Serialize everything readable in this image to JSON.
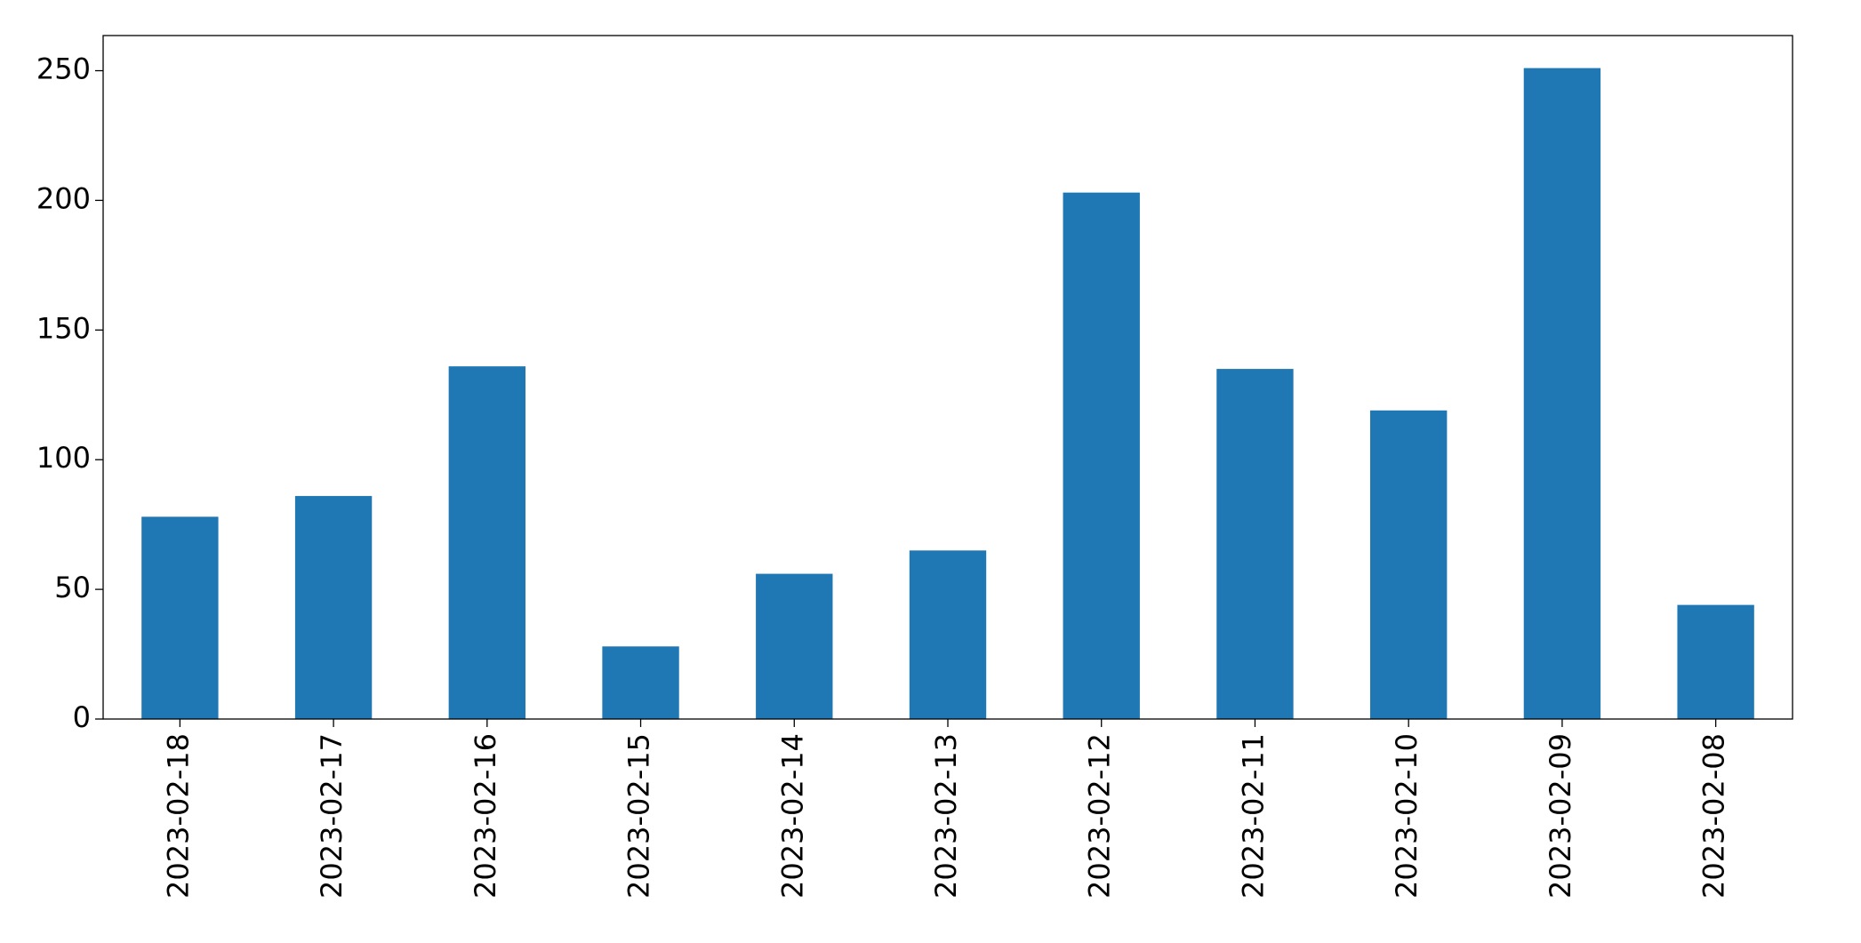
{
  "chart_data": {
    "type": "bar",
    "categories": [
      "2023-02-18",
      "2023-02-17",
      "2023-02-16",
      "2023-02-15",
      "2023-02-14",
      "2023-02-13",
      "2023-02-12",
      "2023-02-11",
      "2023-02-10",
      "2023-02-09",
      "2023-02-08"
    ],
    "values": [
      78,
      86,
      136,
      28,
      56,
      65,
      203,
      135,
      119,
      251,
      44
    ],
    "color": "#1f77b4",
    "ylim": [
      0,
      263.55
    ],
    "yticks": [
      0,
      50,
      100,
      150,
      200,
      250
    ],
    "grid": false
  }
}
